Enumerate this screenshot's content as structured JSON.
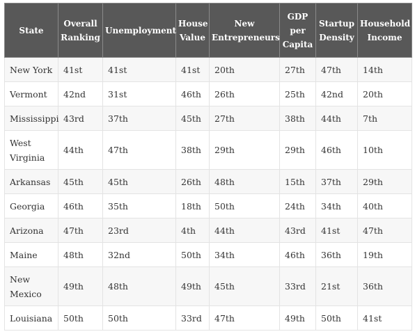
{
  "table": {
    "headers": [
      "State",
      "Overall Ranking",
      "Unemployment",
      "House Value",
      "New Entrepreneurs",
      "GDP per Capita",
      "Startup Density",
      "Household Income"
    ],
    "rows": [
      [
        "New York",
        "41st",
        "41st",
        "41st",
        "20th",
        "27th",
        "47th",
        "14th"
      ],
      [
        "Vermont",
        "42nd",
        "31st",
        "46th",
        "26th",
        "25th",
        "42nd",
        "20th"
      ],
      [
        "Mississippi",
        "43rd",
        "37th",
        "45th",
        "27th",
        "38th",
        "44th",
        "7th"
      ],
      [
        "West Virginia",
        "44th",
        "47th",
        "38th",
        "29th",
        "29th",
        "46th",
        "10th"
      ],
      [
        "Arkansas",
        "45th",
        "45th",
        "26th",
        "48th",
        "15th",
        "37th",
        "29th"
      ],
      [
        "Georgia",
        "46th",
        "35th",
        "18th",
        "50th",
        "24th",
        "34th",
        "40th"
      ],
      [
        "Arizona",
        "47th",
        "23rd",
        "4th",
        "44th",
        "43rd",
        "41st",
        "47th"
      ],
      [
        "Maine",
        "48th",
        "32nd",
        "50th",
        "34th",
        "46th",
        "36th",
        "19th"
      ],
      [
        "New Mexico",
        "49th",
        "48th",
        "49th",
        "45th",
        "33rd",
        "21st",
        "36th"
      ],
      [
        "Louisiana",
        "50th",
        "50th",
        "33rd",
        "47th",
        "49th",
        "50th",
        "41st"
      ]
    ]
  }
}
